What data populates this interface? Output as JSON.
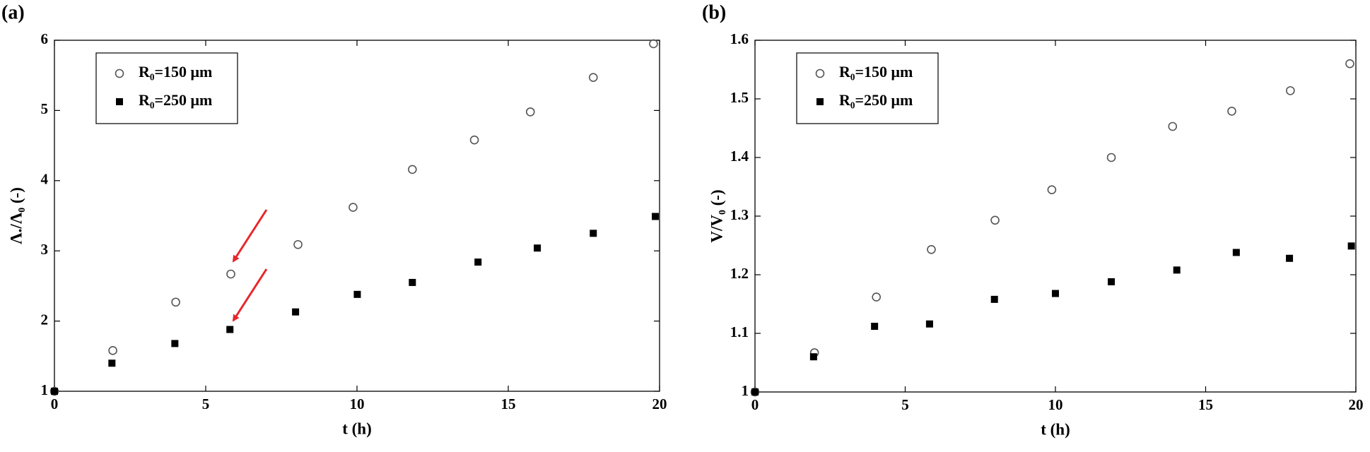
{
  "chart_data": [
    {
      "type": "scatter",
      "panel_label": "(a)",
      "x_label": "t (h)",
      "y_label": "Λ./Λ₀ (-)",
      "xlim": [
        0,
        20
      ],
      "xticks": [
        0,
        5,
        10,
        15,
        20
      ],
      "ylim": [
        1,
        6
      ],
      "yticks": [
        1,
        2,
        3,
        4,
        5,
        6
      ],
      "grid": false,
      "legend": "upper left",
      "series": [
        {
          "name": "R₀=150 μm",
          "marker": "open-circle",
          "color": "#555555",
          "x": [
            0,
            1.93,
            4.01,
            5.83,
            8.05,
            9.87,
            11.83,
            13.88,
            15.73,
            17.81,
            19.8
          ],
          "values": [
            1,
            1.58,
            2.27,
            2.67,
            3.09,
            3.62,
            4.16,
            4.58,
            4.98,
            5.47,
            5.95
          ]
        },
        {
          "name": "R₀=250 μm",
          "marker": "filled-square",
          "color": "#000000",
          "x": [
            0,
            1.9,
            3.98,
            5.8,
            7.97,
            10.01,
            11.83,
            14.0,
            15.96,
            17.81,
            19.86
          ],
          "values": [
            1,
            1.4,
            1.68,
            1.88,
            2.13,
            2.38,
            2.55,
            2.84,
            3.04,
            3.25,
            3.49
          ]
        }
      ]
    },
    {
      "type": "scatter",
      "panel_label": "(b)",
      "x_label": "t (h)",
      "y_label": "V/V₀ (-)",
      "xlim": [
        0,
        20
      ],
      "xticks": [
        0,
        5,
        10,
        15,
        20
      ],
      "ylim": [
        1,
        1.6
      ],
      "yticks": [
        1,
        1.1,
        1.2,
        1.3,
        1.4,
        1.5,
        1.6
      ],
      "grid": false,
      "legend": "upper left",
      "series": [
        {
          "name": "R₀=150 μm",
          "marker": "open-circle",
          "color": "#555555",
          "x": [
            0,
            1.98,
            4.04,
            5.87,
            7.99,
            9.88,
            11.86,
            13.9,
            15.87,
            17.82,
            19.8
          ],
          "values": [
            1,
            1.067,
            1.162,
            1.243,
            1.293,
            1.345,
            1.4,
            1.453,
            1.479,
            1.514,
            1.56
          ]
        },
        {
          "name": "R₀=250 μm",
          "marker": "filled-square",
          "color": "#000000",
          "x": [
            0,
            1.95,
            3.98,
            5.81,
            7.97,
            10.0,
            11.86,
            14.04,
            16.02,
            17.79,
            19.85
          ],
          "values": [
            1,
            1.06,
            1.112,
            1.116,
            1.158,
            1.168,
            1.188,
            1.208,
            1.238,
            1.228,
            1.249
          ]
        }
      ]
    }
  ]
}
